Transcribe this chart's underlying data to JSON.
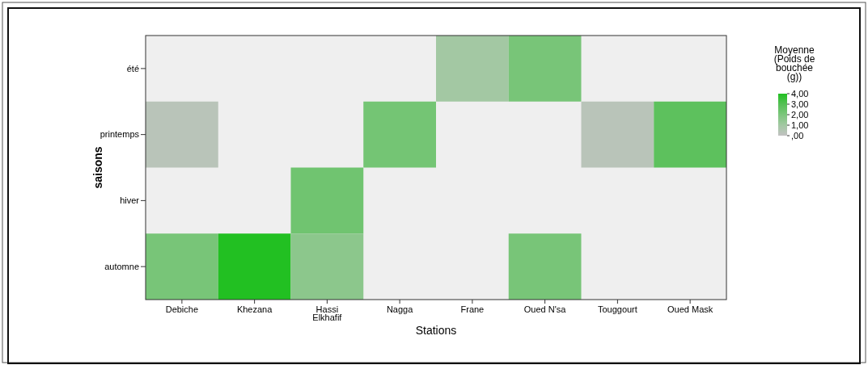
{
  "chart_data": {
    "type": "heatmap",
    "xlabel": "Stations",
    "ylabel": "saisons",
    "clabel": "Moyenne (Poids de bouchée (g))",
    "categories": [
      "Debiche",
      "Khezana",
      "Hassi Elkhafif",
      "Nagga",
      "Frane",
      "Oued N'sa",
      "Touggourt",
      "Oued Mask"
    ],
    "y_categories": [
      "été",
      "printemps",
      "hiver",
      "automne"
    ],
    "cells": [
      [
        null,
        null,
        null,
        null,
        1.0,
        2.1,
        null,
        null
      ],
      [
        0.3,
        null,
        null,
        2.2,
        null,
        null,
        0.3,
        2.8
      ],
      [
        null,
        null,
        2.3,
        null,
        null,
        null,
        null,
        null
      ],
      [
        2.1,
        4.0,
        1.6,
        null,
        null,
        2.1,
        null,
        null
      ]
    ],
    "clim": [
      0,
      4
    ],
    "cticks": [
      {
        "value": 4,
        "label": "4,00"
      },
      {
        "value": 3,
        "label": "3,00"
      },
      {
        "value": 2,
        "label": "2,00"
      },
      {
        "value": 1,
        "label": "1,00"
      },
      {
        "value": 0,
        "label": ",00"
      }
    ]
  }
}
